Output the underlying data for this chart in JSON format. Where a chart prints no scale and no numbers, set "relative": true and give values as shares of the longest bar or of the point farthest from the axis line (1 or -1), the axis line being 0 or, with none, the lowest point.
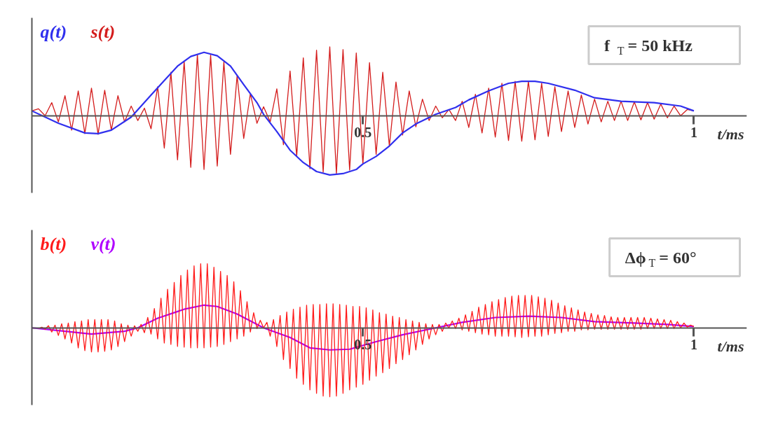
{
  "chart_data": [
    {
      "type": "line",
      "relative": true,
      "legend": "top left",
      "tick_labels": "x",
      "xlabel": "t/ms",
      "xlim": [
        0,
        1.08
      ],
      "xticks": [
        0.5,
        1
      ],
      "annotations": [
        "f$_{T}$ = 50 kHz"
      ],
      "series": [
        {
          "name": "q(t)",
          "color": "#3030ee",
          "x": [
            0,
            0.04,
            0.08,
            0.1,
            0.12,
            0.15,
            0.18,
            0.2,
            0.22,
            0.24,
            0.26,
            0.28,
            0.3,
            0.32,
            0.34,
            0.35,
            0.37,
            0.39,
            0.41,
            0.43,
            0.45,
            0.47,
            0.49,
            0.5,
            0.52,
            0.54,
            0.56,
            0.58,
            0.61,
            0.64,
            0.66,
            0.69,
            0.72,
            0.74,
            0.76,
            0.78,
            0.82,
            0.85,
            0.89,
            0.94,
            0.98,
            1.0
          ],
          "values": [
            0.07,
            -0.11,
            -0.25,
            -0.26,
            -0.21,
            -0.02,
            0.3,
            0.51,
            0.72,
            0.86,
            0.92,
            0.87,
            0.72,
            0.45,
            0.19,
            0.02,
            -0.23,
            -0.5,
            -0.68,
            -0.81,
            -0.86,
            -0.84,
            -0.78,
            -0.7,
            -0.59,
            -0.44,
            -0.25,
            -0.12,
            0.02,
            0.12,
            0.23,
            0.36,
            0.47,
            0.5,
            0.5,
            0.47,
            0.37,
            0.26,
            0.21,
            0.19,
            0.14,
            0.07
          ]
        },
        {
          "name": "s(t)",
          "color": "#d41c1c",
          "x": [
            0,
            0.01,
            0.02,
            0.03,
            0.04,
            0.05,
            0.06,
            0.07,
            0.08,
            0.09,
            0.1,
            0.11,
            0.12,
            0.13,
            0.14,
            0.15,
            0.16,
            0.17,
            0.18,
            0.19,
            0.2,
            0.21,
            0.22,
            0.23,
            0.24,
            0.25,
            0.26,
            0.27,
            0.28,
            0.29,
            0.3,
            0.31,
            0.32,
            0.33,
            0.34,
            0.35,
            0.36,
            0.37,
            0.38,
            0.39,
            0.4,
            0.41,
            0.42,
            0.43,
            0.44,
            0.45,
            0.46,
            0.47,
            0.48,
            0.49,
            0.5,
            0.51,
            0.52,
            0.53,
            0.54,
            0.55,
            0.56,
            0.57,
            0.58,
            0.59,
            0.6,
            0.61,
            0.62,
            0.63,
            0.64,
            0.65,
            0.66,
            0.67,
            0.68,
            0.69,
            0.7,
            0.71,
            0.72,
            0.73,
            0.74,
            0.75,
            0.76,
            0.77,
            0.78,
            0.79,
            0.8,
            0.81,
            0.82,
            0.83,
            0.84,
            0.85,
            0.86,
            0.87,
            0.88,
            0.89,
            0.9,
            0.91,
            0.92,
            0.93,
            0.94,
            0.95,
            0.96,
            0.97,
            0.98,
            0.99,
            1.0
          ],
          "values": [
            0.07,
            0.1,
            0,
            0.19,
            -0.09,
            0.29,
            -0.21,
            0.36,
            -0.26,
            0.4,
            -0.27,
            0.37,
            -0.21,
            0.29,
            -0.09,
            0.14,
            -0.07,
            0.11,
            -0.19,
            0.42,
            -0.47,
            0.63,
            -0.64,
            0.79,
            -0.75,
            0.89,
            -0.78,
            0.88,
            -0.73,
            0.78,
            -0.56,
            0.58,
            -0.33,
            0.32,
            -0.11,
            0.13,
            -0.09,
            0.39,
            -0.42,
            0.65,
            -0.59,
            0.84,
            -0.77,
            0.95,
            -0.82,
            1,
            -0.84,
            0.96,
            -0.79,
            0.91,
            -0.7,
            0.77,
            -0.56,
            0.63,
            -0.44,
            0.49,
            -0.28,
            0.36,
            -0.16,
            0.24,
            -0.07,
            0.14,
            -0.03,
            0.09,
            -0.07,
            0.21,
            -0.17,
            0.31,
            -0.25,
            0.4,
            -0.31,
            0.47,
            -0.36,
            0.5,
            -0.37,
            0.5,
            -0.35,
            0.47,
            -0.3,
            0.42,
            -0.23,
            0.36,
            -0.17,
            0.3,
            -0.12,
            0.24,
            -0.09,
            0.21,
            -0.07,
            0.21,
            -0.07,
            0.2,
            -0.06,
            0.19,
            -0.05,
            0.17,
            -0.03,
            0.14,
            0,
            0.09,
            0.07
          ]
        }
      ]
    },
    {
      "type": "line",
      "relative": true,
      "legend": "top left",
      "tick_labels": "x",
      "xlabel": "t/ms",
      "xlim": [
        0,
        1.08
      ],
      "xticks": [
        0.5,
        1
      ],
      "annotations": [
        "Δϕ$_{T}$ = 60°"
      ],
      "series": [
        {
          "name": "b(t)",
          "color": "#ff1a1a",
          "x": [
            0.01,
            0.015,
            0.02,
            0.025,
            0.03,
            0.035,
            0.04,
            0.045,
            0.05,
            0.055,
            0.06,
            0.065,
            0.07,
            0.075,
            0.08,
            0.085,
            0.09,
            0.095,
            0.1,
            0.105,
            0.11,
            0.115,
            0.12,
            0.125,
            0.13,
            0.135,
            0.14,
            0.145,
            0.15,
            0.155,
            0.16,
            0.165,
            0.17,
            0.175,
            0.18,
            0.185,
            0.19,
            0.195,
            0.2,
            0.205,
            0.21,
            0.215,
            0.22,
            0.225,
            0.23,
            0.235,
            0.24,
            0.245,
            0.25,
            0.255,
            0.26,
            0.265,
            0.27,
            0.275,
            0.28,
            0.285,
            0.29,
            0.295,
            0.3,
            0.305,
            0.31,
            0.315,
            0.32,
            0.325,
            0.33,
            0.335,
            0.34,
            0.345,
            0.35,
            0.355,
            0.36,
            0.365,
            0.37,
            0.375,
            0.38,
            0.385,
            0.39,
            0.395,
            0.4,
            0.405,
            0.41,
            0.415,
            0.42,
            0.425,
            0.43,
            0.435,
            0.44,
            0.445,
            0.45,
            0.455,
            0.46,
            0.465,
            0.47,
            0.475,
            0.48,
            0.485,
            0.49,
            0.495,
            0.5,
            0.505,
            0.51,
            0.515,
            0.52,
            0.525,
            0.53,
            0.535,
            0.54,
            0.545,
            0.55,
            0.555,
            0.56,
            0.565,
            0.57,
            0.575,
            0.58,
            0.585,
            0.59,
            0.595,
            0.6,
            0.605,
            0.61,
            0.615,
            0.62,
            0.625,
            0.63,
            0.635,
            0.64,
            0.645,
            0.65,
            0.655,
            0.66,
            0.665,
            0.67,
            0.675,
            0.68,
            0.685,
            0.69,
            0.695,
            0.7,
            0.705,
            0.71,
            0.715,
            0.72,
            0.725,
            0.73,
            0.735,
            0.74,
            0.745,
            0.75,
            0.755,
            0.76,
            0.765,
            0.77,
            0.775,
            0.78,
            0.785,
            0.79,
            0.795,
            0.8,
            0.805,
            0.81,
            0.815,
            0.82,
            0.825,
            0.83,
            0.835,
            0.84,
            0.845,
            0.85,
            0.855,
            0.86,
            0.865,
            0.87,
            0.875,
            0.88,
            0.885,
            0.89,
            0.895,
            0.9,
            0.905,
            0.91,
            0.915,
            0.92,
            0.925,
            0.93,
            0.935,
            0.94,
            0.945,
            0.95,
            0.955,
            0.96,
            0.965,
            0.97,
            0.975,
            0.98,
            0.985,
            0.99,
            0.995,
            1.0
          ],
          "values": [
            -0.01,
            0.01,
            -0.02,
            0.03,
            -0.06,
            0.04,
            -0.11,
            0.06,
            -0.16,
            0.07,
            -0.22,
            0.09,
            -0.29,
            0.1,
            -0.33,
            0.12,
            -0.35,
            0.12,
            -0.35,
            0.12,
            -0.34,
            0.12,
            -0.32,
            0.1,
            -0.27,
            0.06,
            -0.2,
            0.04,
            -0.12,
            0.03,
            -0.05,
            0.05,
            -0.07,
            0.15,
            -0.09,
            0.28,
            -0.16,
            0.43,
            -0.22,
            0.56,
            -0.24,
            0.66,
            -0.27,
            0.76,
            -0.28,
            0.84,
            -0.29,
            0.9,
            -0.29,
            0.93,
            -0.29,
            0.93,
            -0.28,
            0.88,
            -0.27,
            0.82,
            -0.24,
            0.76,
            -0.2,
            0.67,
            -0.16,
            0.54,
            -0.12,
            0.38,
            -0.06,
            0.22,
            -0.01,
            0.11,
            0,
            0.08,
            -0.12,
            0.12,
            -0.27,
            0.18,
            -0.46,
            0.23,
            -0.59,
            0.27,
            -0.73,
            0.3,
            -0.82,
            0.33,
            -0.9,
            0.34,
            -0.95,
            0.34,
            -0.99,
            0.35,
            -1,
            0.35,
            -0.99,
            0.34,
            -0.95,
            0.33,
            -0.9,
            0.31,
            -0.86,
            0.31,
            -0.82,
            0.29,
            -0.76,
            0.26,
            -0.7,
            0.22,
            -0.65,
            0.2,
            -0.59,
            0.17,
            -0.52,
            0.15,
            -0.46,
            0.12,
            -0.39,
            0.1,
            -0.32,
            0.08,
            -0.24,
            0.06,
            -0.16,
            0.05,
            -0.1,
            0.05,
            -0.05,
            0.07,
            0,
            0.1,
            -0.01,
            0.14,
            -0.03,
            0.19,
            -0.05,
            0.24,
            -0.07,
            0.3,
            -0.09,
            0.34,
            -0.1,
            0.38,
            -0.12,
            0.41,
            -0.12,
            0.44,
            -0.12,
            0.46,
            -0.13,
            0.47,
            -0.14,
            0.47,
            -0.13,
            0.47,
            -0.12,
            0.45,
            -0.12,
            0.43,
            -0.1,
            0.4,
            -0.08,
            0.36,
            -0.07,
            0.32,
            -0.05,
            0.29,
            -0.05,
            0.26,
            -0.03,
            0.23,
            -0.03,
            0.21,
            -0.02,
            0.19,
            -0.02,
            0.18,
            -0.02,
            0.16,
            -0.02,
            0.15,
            -0.02,
            0.15,
            -0.02,
            0.15,
            -0.02,
            0.15,
            -0.02,
            0.15,
            -0.01,
            0.14,
            -0.01,
            0.13,
            -0.01,
            0.12,
            -0.01,
            0.11,
            -0.01,
            0.09,
            0,
            0.07,
            0.01,
            0.04,
            0.02
          ]
        },
        {
          "name": "v(t)",
          "color": "#b000ff",
          "x": [
            0,
            0.05,
            0.09,
            0.14,
            0.16,
            0.19,
            0.23,
            0.26,
            0.28,
            0.31,
            0.35,
            0.39,
            0.42,
            0.45,
            0.48,
            0.52,
            0.56,
            0.61,
            0.65,
            0.7,
            0.75,
            0.8,
            0.85,
            0.91,
            0.96,
            1.0
          ],
          "values": [
            0,
            -0.05,
            -0.09,
            -0.05,
            0,
            0.14,
            0.27,
            0.33,
            0.31,
            0.2,
            0,
            -0.14,
            -0.29,
            -0.32,
            -0.31,
            -0.2,
            -0.1,
            0,
            0.08,
            0.15,
            0.17,
            0.15,
            0.09,
            0.07,
            0.05,
            0.02
          ]
        }
      ]
    }
  ]
}
